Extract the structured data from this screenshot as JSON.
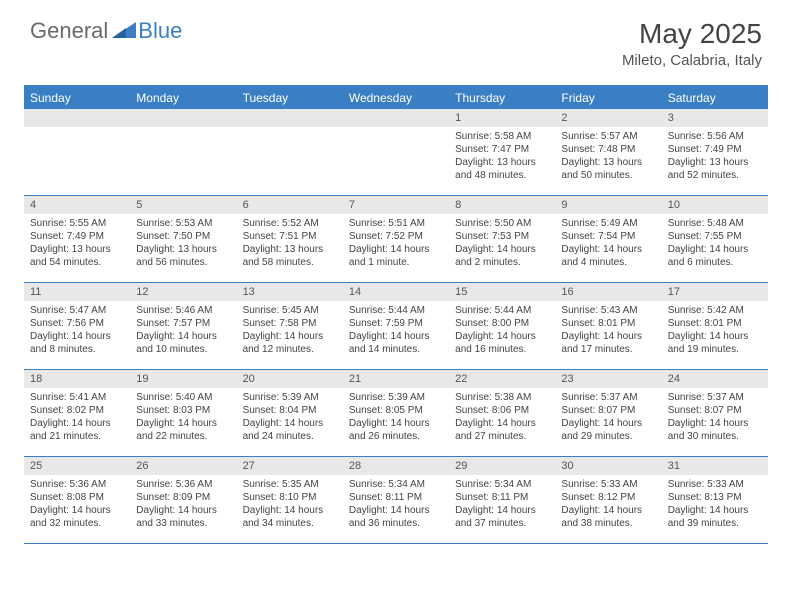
{
  "logo": {
    "general": "General",
    "blue": "Blue"
  },
  "title": "May 2025",
  "location": "Mileto, Calabria, Italy",
  "day_headers": [
    "Sunday",
    "Monday",
    "Tuesday",
    "Wednesday",
    "Thursday",
    "Friday",
    "Saturday"
  ],
  "colors": {
    "accent": "#3a7fc4",
    "header_bg": "#3a7fc4",
    "daynum_bg": "#e8e8e8",
    "text": "#444444",
    "logo_gray": "#6b6b6b"
  },
  "weeks": [
    [
      {
        "day": "",
        "sunrise": "",
        "sunset": "",
        "daylight": ""
      },
      {
        "day": "",
        "sunrise": "",
        "sunset": "",
        "daylight": ""
      },
      {
        "day": "",
        "sunrise": "",
        "sunset": "",
        "daylight": ""
      },
      {
        "day": "",
        "sunrise": "",
        "sunset": "",
        "daylight": ""
      },
      {
        "day": "1",
        "sunrise": "Sunrise: 5:58 AM",
        "sunset": "Sunset: 7:47 PM",
        "daylight": "Daylight: 13 hours and 48 minutes."
      },
      {
        "day": "2",
        "sunrise": "Sunrise: 5:57 AM",
        "sunset": "Sunset: 7:48 PM",
        "daylight": "Daylight: 13 hours and 50 minutes."
      },
      {
        "day": "3",
        "sunrise": "Sunrise: 5:56 AM",
        "sunset": "Sunset: 7:49 PM",
        "daylight": "Daylight: 13 hours and 52 minutes."
      }
    ],
    [
      {
        "day": "4",
        "sunrise": "Sunrise: 5:55 AM",
        "sunset": "Sunset: 7:49 PM",
        "daylight": "Daylight: 13 hours and 54 minutes."
      },
      {
        "day": "5",
        "sunrise": "Sunrise: 5:53 AM",
        "sunset": "Sunset: 7:50 PM",
        "daylight": "Daylight: 13 hours and 56 minutes."
      },
      {
        "day": "6",
        "sunrise": "Sunrise: 5:52 AM",
        "sunset": "Sunset: 7:51 PM",
        "daylight": "Daylight: 13 hours and 58 minutes."
      },
      {
        "day": "7",
        "sunrise": "Sunrise: 5:51 AM",
        "sunset": "Sunset: 7:52 PM",
        "daylight": "Daylight: 14 hours and 1 minute."
      },
      {
        "day": "8",
        "sunrise": "Sunrise: 5:50 AM",
        "sunset": "Sunset: 7:53 PM",
        "daylight": "Daylight: 14 hours and 2 minutes."
      },
      {
        "day": "9",
        "sunrise": "Sunrise: 5:49 AM",
        "sunset": "Sunset: 7:54 PM",
        "daylight": "Daylight: 14 hours and 4 minutes."
      },
      {
        "day": "10",
        "sunrise": "Sunrise: 5:48 AM",
        "sunset": "Sunset: 7:55 PM",
        "daylight": "Daylight: 14 hours and 6 minutes."
      }
    ],
    [
      {
        "day": "11",
        "sunrise": "Sunrise: 5:47 AM",
        "sunset": "Sunset: 7:56 PM",
        "daylight": "Daylight: 14 hours and 8 minutes."
      },
      {
        "day": "12",
        "sunrise": "Sunrise: 5:46 AM",
        "sunset": "Sunset: 7:57 PM",
        "daylight": "Daylight: 14 hours and 10 minutes."
      },
      {
        "day": "13",
        "sunrise": "Sunrise: 5:45 AM",
        "sunset": "Sunset: 7:58 PM",
        "daylight": "Daylight: 14 hours and 12 minutes."
      },
      {
        "day": "14",
        "sunrise": "Sunrise: 5:44 AM",
        "sunset": "Sunset: 7:59 PM",
        "daylight": "Daylight: 14 hours and 14 minutes."
      },
      {
        "day": "15",
        "sunrise": "Sunrise: 5:44 AM",
        "sunset": "Sunset: 8:00 PM",
        "daylight": "Daylight: 14 hours and 16 minutes."
      },
      {
        "day": "16",
        "sunrise": "Sunrise: 5:43 AM",
        "sunset": "Sunset: 8:01 PM",
        "daylight": "Daylight: 14 hours and 17 minutes."
      },
      {
        "day": "17",
        "sunrise": "Sunrise: 5:42 AM",
        "sunset": "Sunset: 8:01 PM",
        "daylight": "Daylight: 14 hours and 19 minutes."
      }
    ],
    [
      {
        "day": "18",
        "sunrise": "Sunrise: 5:41 AM",
        "sunset": "Sunset: 8:02 PM",
        "daylight": "Daylight: 14 hours and 21 minutes."
      },
      {
        "day": "19",
        "sunrise": "Sunrise: 5:40 AM",
        "sunset": "Sunset: 8:03 PM",
        "daylight": "Daylight: 14 hours and 22 minutes."
      },
      {
        "day": "20",
        "sunrise": "Sunrise: 5:39 AM",
        "sunset": "Sunset: 8:04 PM",
        "daylight": "Daylight: 14 hours and 24 minutes."
      },
      {
        "day": "21",
        "sunrise": "Sunrise: 5:39 AM",
        "sunset": "Sunset: 8:05 PM",
        "daylight": "Daylight: 14 hours and 26 minutes."
      },
      {
        "day": "22",
        "sunrise": "Sunrise: 5:38 AM",
        "sunset": "Sunset: 8:06 PM",
        "daylight": "Daylight: 14 hours and 27 minutes."
      },
      {
        "day": "23",
        "sunrise": "Sunrise: 5:37 AM",
        "sunset": "Sunset: 8:07 PM",
        "daylight": "Daylight: 14 hours and 29 minutes."
      },
      {
        "day": "24",
        "sunrise": "Sunrise: 5:37 AM",
        "sunset": "Sunset: 8:07 PM",
        "daylight": "Daylight: 14 hours and 30 minutes."
      }
    ],
    [
      {
        "day": "25",
        "sunrise": "Sunrise: 5:36 AM",
        "sunset": "Sunset: 8:08 PM",
        "daylight": "Daylight: 14 hours and 32 minutes."
      },
      {
        "day": "26",
        "sunrise": "Sunrise: 5:36 AM",
        "sunset": "Sunset: 8:09 PM",
        "daylight": "Daylight: 14 hours and 33 minutes."
      },
      {
        "day": "27",
        "sunrise": "Sunrise: 5:35 AM",
        "sunset": "Sunset: 8:10 PM",
        "daylight": "Daylight: 14 hours and 34 minutes."
      },
      {
        "day": "28",
        "sunrise": "Sunrise: 5:34 AM",
        "sunset": "Sunset: 8:11 PM",
        "daylight": "Daylight: 14 hours and 36 minutes."
      },
      {
        "day": "29",
        "sunrise": "Sunrise: 5:34 AM",
        "sunset": "Sunset: 8:11 PM",
        "daylight": "Daylight: 14 hours and 37 minutes."
      },
      {
        "day": "30",
        "sunrise": "Sunrise: 5:33 AM",
        "sunset": "Sunset: 8:12 PM",
        "daylight": "Daylight: 14 hours and 38 minutes."
      },
      {
        "day": "31",
        "sunrise": "Sunrise: 5:33 AM",
        "sunset": "Sunset: 8:13 PM",
        "daylight": "Daylight: 14 hours and 39 minutes."
      }
    ]
  ]
}
